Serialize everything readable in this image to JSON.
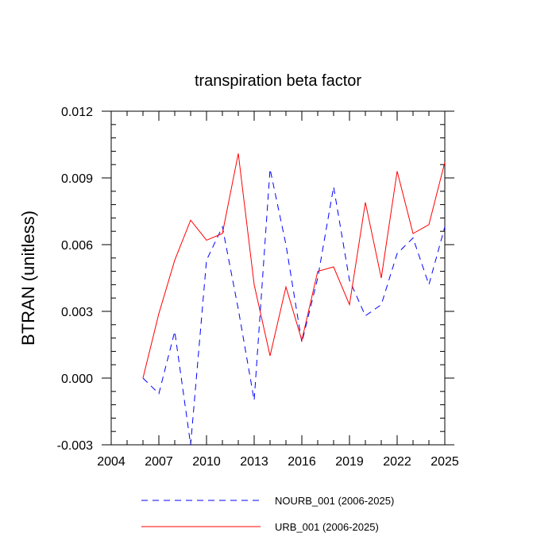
{
  "chart_data": {
    "type": "line",
    "title": "transpiration beta factor",
    "xlabel": "",
    "ylabel": "BTRAN  (unitless)",
    "xlim": [
      2004,
      2025
    ],
    "ylim": [
      -0.003,
      0.012
    ],
    "x_ticks": [
      2004,
      2007,
      2010,
      2013,
      2016,
      2019,
      2022,
      2025
    ],
    "x_tick_labels": [
      "2004",
      "2007",
      "2010",
      "2013",
      "2016",
      "2019",
      "2022",
      "2025"
    ],
    "y_ticks": [
      -0.003,
      0.0,
      0.003,
      0.006,
      0.009,
      0.012
    ],
    "y_tick_labels": [
      "-0.003",
      "0.000",
      "0.003",
      "0.006",
      "0.009",
      "0.012"
    ],
    "grid": false,
    "legend_position": "bottom",
    "x": [
      2006,
      2007,
      2008,
      2009,
      2010,
      2011,
      2012,
      2013,
      2014,
      2015,
      2016,
      2017,
      2018,
      2019,
      2020,
      2021,
      2022,
      2023,
      2024,
      2025
    ],
    "series": [
      {
        "name": "NOURB_001 (2006-2025)",
        "color": "#0000ff",
        "dash": "dashed",
        "values": [
          0.0,
          -0.0007,
          0.0021,
          -0.003,
          0.0053,
          0.0068,
          0.0031,
          -0.001,
          0.0094,
          0.006,
          0.0016,
          0.0045,
          0.0086,
          0.0044,
          0.0028,
          0.0033,
          0.0056,
          0.0063,
          0.0042,
          0.0068
        ]
      },
      {
        "name": "URB_001 (2006-2025)",
        "color": "#ff0000",
        "dash": "solid",
        "values": [
          0.0,
          0.0029,
          0.0053,
          0.0071,
          0.0062,
          0.0065,
          0.0101,
          0.0042,
          0.001,
          0.0041,
          0.0017,
          0.0048,
          0.005,
          0.0033,
          0.0079,
          0.0045,
          0.0093,
          0.0065,
          0.0069,
          0.0097
        ]
      }
    ]
  }
}
